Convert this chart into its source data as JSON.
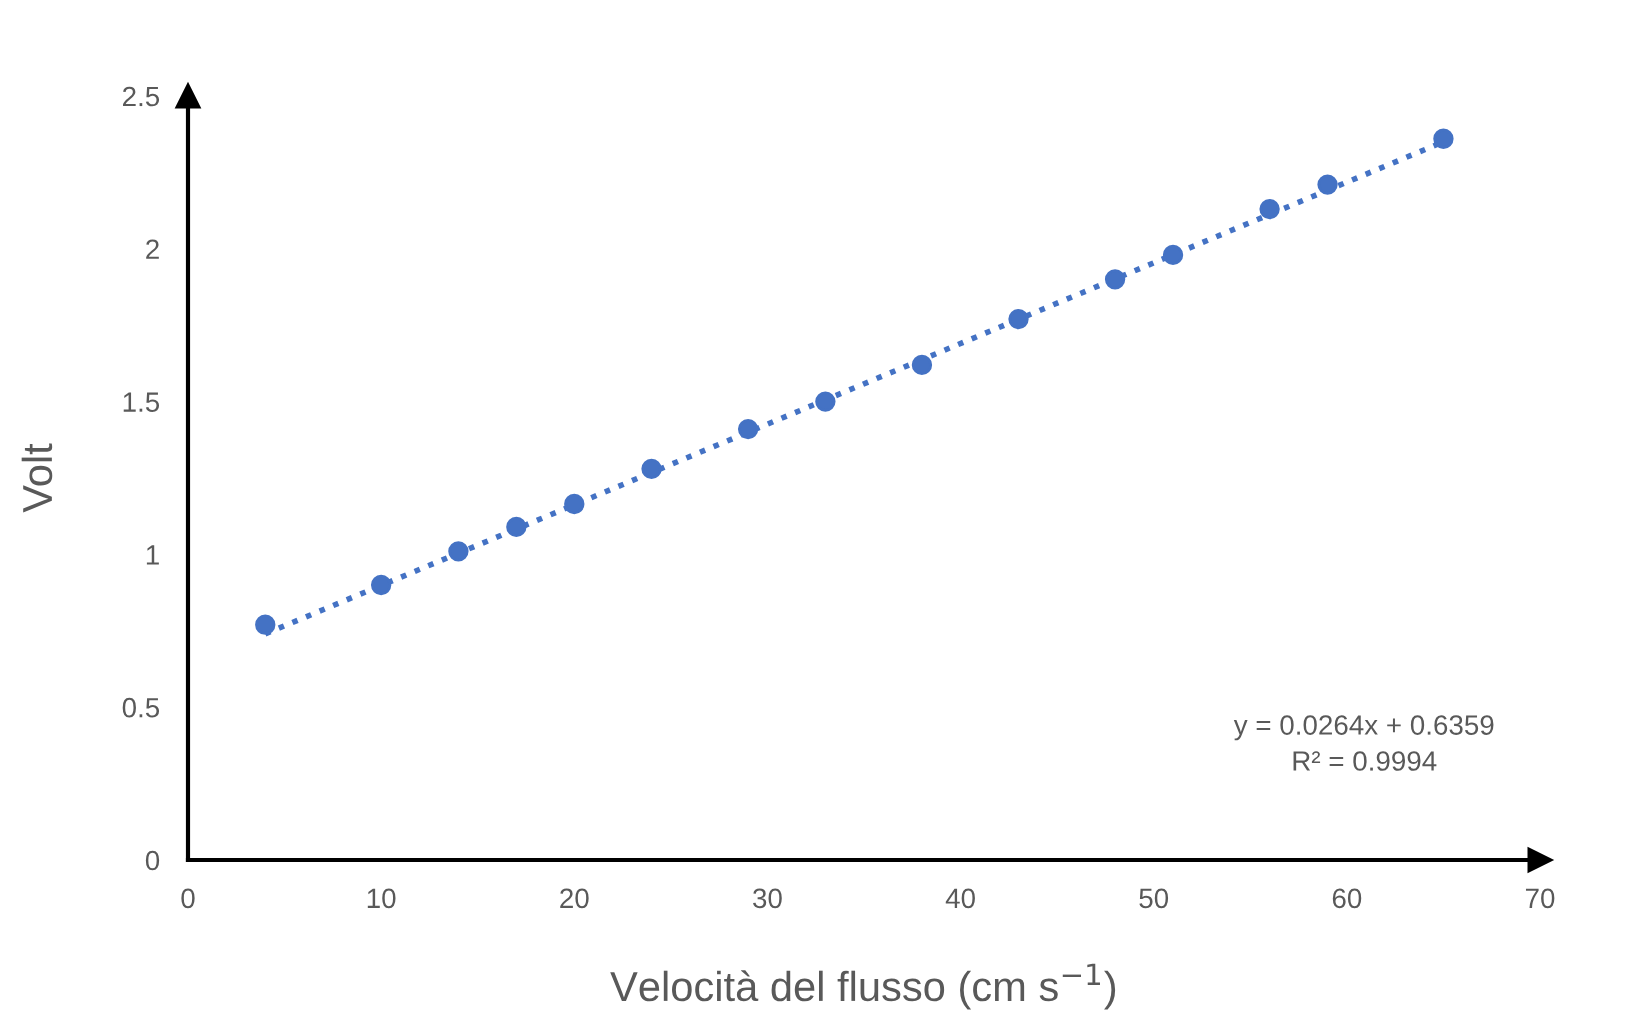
{
  "chart_data": {
    "type": "scatter",
    "xlabel": "Velocità del flusso (cm s$^{−1}$)",
    "ylabel": "Volt",
    "x": [
      4,
      10,
      14,
      17,
      20,
      24,
      29,
      33,
      38,
      43,
      48,
      51,
      56,
      59,
      65
    ],
    "series": [
      {
        "color": "#4472c4",
        "marker": "circle",
        "values": [
          0.77,
          0.9,
          1.01,
          1.09,
          1.165,
          1.28,
          1.41,
          1.5,
          1.62,
          1.77,
          1.9,
          1.98,
          2.13,
          2.21,
          2.36
        ]
      },
      {
        "type": "line",
        "color": "#4472c4",
        "line_style": "dotted",
        "marker": "none",
        "x": [
          4,
          65
        ],
        "values": [
          0.74,
          2.35
        ]
      }
    ],
    "xlim": [
      0,
      70
    ],
    "xticks": [
      0,
      10,
      20,
      30,
      40,
      50,
      60,
      70
    ],
    "ylim": [
      0,
      2.5
    ],
    "yticks": [
      0,
      0.5,
      1,
      1.5,
      2,
      2.5
    ],
    "grid": false,
    "legend": false,
    "annotations": [
      "y = 0.0264x + 0.6359\nR² = 0.9994"
    ]
  }
}
